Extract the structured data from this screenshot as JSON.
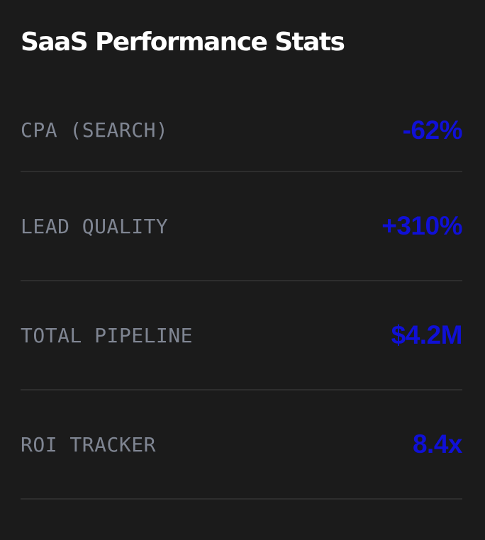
{
  "title": "SaaS Performance Stats",
  "accent_color": "#1010d6",
  "stats": [
    {
      "label": "CPA (SEARCH)",
      "value": "-62%"
    },
    {
      "label": "LEAD QUALITY",
      "value": "+310%"
    },
    {
      "label": "TOTAL PIPELINE",
      "value": "$4.2M"
    },
    {
      "label": "ROI TRACKER",
      "value": "8.4x"
    }
  ]
}
